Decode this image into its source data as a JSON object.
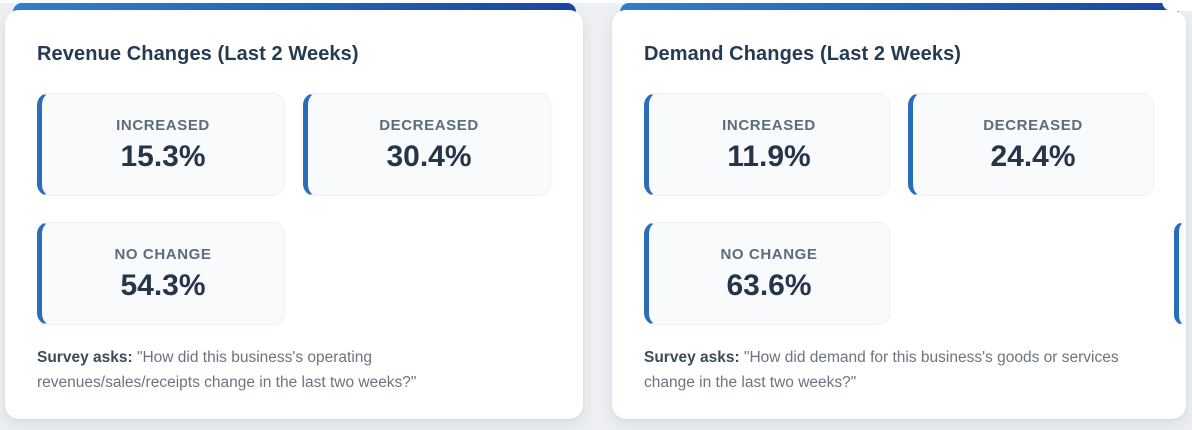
{
  "page": {
    "background": "#eef0f3",
    "card_background": "#ffffff",
    "accent_gradient_start": "#3380cd",
    "accent_gradient_end": "#1b46a4",
    "stat_border_color": "#2a6db9",
    "stat_box_background": "#f8fafc",
    "title_color": "#243b53",
    "stat_label_color": "#5d6c7c",
    "stat_value_color": "#263549"
  },
  "cards": [
    {
      "title": "Revenue Changes (Last 2 Weeks)",
      "stats": [
        {
          "label": "INCREASED",
          "value": "15.3%"
        },
        {
          "label": "DECREASED",
          "value": "30.4%"
        },
        {
          "label": "NO CHANGE",
          "value": "54.3%"
        }
      ],
      "survey_prefix": "Survey asks:",
      "survey_question": "\"How did this business's operating revenues/sales/receipts change in the last two weeks?\""
    },
    {
      "title": "Demand Changes (Last 2 Weeks)",
      "stats": [
        {
          "label": "INCREASED",
          "value": "11.9%"
        },
        {
          "label": "DECREASED",
          "value": "24.4%"
        },
        {
          "label": "NO CHANGE",
          "value": "63.6%"
        }
      ],
      "survey_prefix": "Survey asks:",
      "survey_question": "\"How did demand for this business's goods or services change in the last two weeks?\""
    }
  ]
}
